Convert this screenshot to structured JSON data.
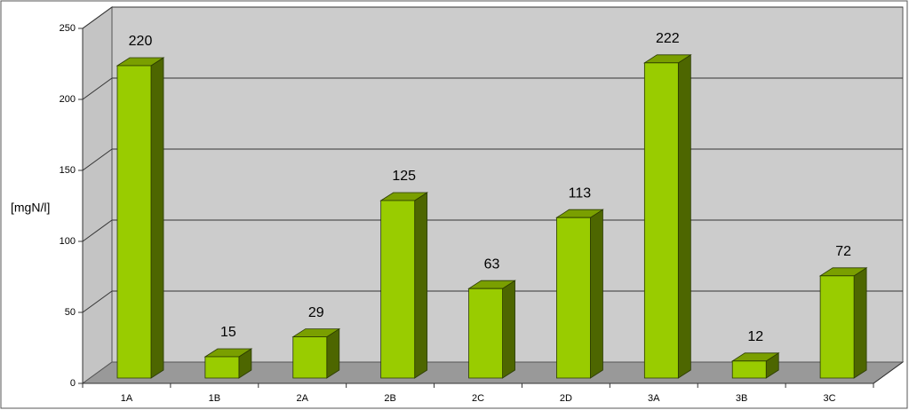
{
  "chart_data": {
    "type": "bar3d",
    "y_label": "[mgN/l]",
    "categories": [
      "1A",
      "1B",
      "2A",
      "2B",
      "2C",
      "2D",
      "3A",
      "3B",
      "3C"
    ],
    "values": [
      220,
      15,
      29,
      125,
      63,
      113,
      222,
      12,
      72
    ],
    "color": "#99cc00",
    "ylim": [
      0,
      250
    ],
    "yticks": [
      0,
      50,
      100,
      150,
      200,
      250
    ],
    "grid": true
  }
}
